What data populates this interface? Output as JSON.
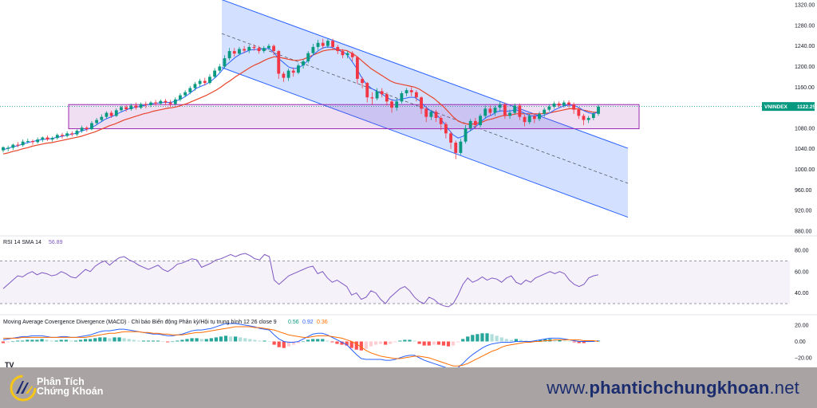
{
  "chart_data": {
    "type": "candlestick",
    "price_axis": {
      "ticks": [
        "1320.00",
        "1280.00",
        "1240.00",
        "1200.00",
        "1160.00",
        "1120.00",
        "1080.00",
        "1040.00",
        "1000.00",
        "960.00",
        "920.00",
        "880.00"
      ],
      "ylim": [
        860,
        1330
      ]
    },
    "current_price": {
      "symbol": "VNINDEX",
      "value": "1122.25",
      "color": "#089981"
    },
    "colors": {
      "up": "#089981",
      "down": "#f23645",
      "ma_fast": "#2962ff",
      "ma_slow": "#e8442a",
      "channel_fill": "#2962ff",
      "channel_line": "#2962ff",
      "zone_fill": "#9c27b0"
    },
    "candles": [
      [
        1037,
        1043,
        1033,
        1045
      ],
      [
        1040,
        1042,
        1035,
        1046
      ],
      [
        1042,
        1048,
        1038,
        1050
      ],
      [
        1048,
        1047,
        1043,
        1053
      ],
      [
        1047,
        1054,
        1044,
        1058
      ],
      [
        1054,
        1055,
        1050,
        1060
      ],
      [
        1055,
        1053,
        1048,
        1058
      ],
      [
        1053,
        1058,
        1050,
        1062
      ],
      [
        1058,
        1062,
        1053,
        1064
      ],
      [
        1062,
        1058,
        1055,
        1066
      ],
      [
        1058,
        1061,
        1054,
        1064
      ],
      [
        1061,
        1067,
        1058,
        1070
      ],
      [
        1067,
        1065,
        1060,
        1071
      ],
      [
        1065,
        1070,
        1062,
        1074
      ],
      [
        1070,
        1068,
        1064,
        1074
      ],
      [
        1068,
        1075,
        1065,
        1078
      ],
      [
        1075,
        1081,
        1071,
        1085
      ],
      [
        1081,
        1078,
        1073,
        1084
      ],
      [
        1078,
        1090,
        1076,
        1094
      ],
      [
        1090,
        1096,
        1086,
        1100
      ],
      [
        1096,
        1102,
        1092,
        1107
      ],
      [
        1102,
        1110,
        1099,
        1113
      ],
      [
        1110,
        1104,
        1100,
        1114
      ],
      [
        1104,
        1115,
        1102,
        1119
      ],
      [
        1115,
        1121,
        1112,
        1124
      ],
      [
        1121,
        1117,
        1112,
        1125
      ],
      [
        1117,
        1124,
        1114,
        1128
      ],
      [
        1124,
        1120,
        1116,
        1130
      ],
      [
        1120,
        1127,
        1117,
        1130
      ],
      [
        1127,
        1125,
        1119,
        1132
      ],
      [
        1125,
        1130,
        1121,
        1133
      ],
      [
        1130,
        1128,
        1124,
        1135
      ],
      [
        1128,
        1133,
        1125,
        1136
      ],
      [
        1133,
        1130,
        1125,
        1137
      ],
      [
        1130,
        1127,
        1122,
        1135
      ],
      [
        1127,
        1136,
        1124,
        1140
      ],
      [
        1136,
        1144,
        1132,
        1148
      ],
      [
        1144,
        1150,
        1140,
        1154
      ],
      [
        1150,
        1158,
        1146,
        1162
      ],
      [
        1158,
        1166,
        1153,
        1170
      ],
      [
        1166,
        1172,
        1161,
        1176
      ],
      [
        1172,
        1168,
        1163,
        1178
      ],
      [
        1168,
        1180,
        1165,
        1185
      ],
      [
        1180,
        1192,
        1177,
        1197
      ],
      [
        1192,
        1200,
        1188,
        1205
      ],
      [
        1200,
        1216,
        1196,
        1222
      ],
      [
        1216,
        1230,
        1212,
        1236
      ],
      [
        1230,
        1225,
        1219,
        1236
      ],
      [
        1225,
        1234,
        1222,
        1238
      ],
      [
        1234,
        1231,
        1226,
        1240
      ],
      [
        1231,
        1238,
        1226,
        1242
      ],
      [
        1238,
        1236,
        1231,
        1243
      ],
      [
        1236,
        1230,
        1225,
        1240
      ],
      [
        1230,
        1236,
        1226,
        1240
      ],
      [
        1236,
        1240,
        1232,
        1244
      ],
      [
        1240,
        1230,
        1222,
        1243
      ],
      [
        1230,
        1186,
        1176,
        1232
      ],
      [
        1186,
        1178,
        1170,
        1190
      ],
      [
        1178,
        1192,
        1172,
        1196
      ],
      [
        1192,
        1188,
        1180,
        1198
      ],
      [
        1188,
        1202,
        1185,
        1206
      ],
      [
        1202,
        1210,
        1196,
        1214
      ],
      [
        1210,
        1226,
        1206,
        1230
      ],
      [
        1226,
        1238,
        1222,
        1244
      ],
      [
        1238,
        1246,
        1232,
        1252
      ],
      [
        1246,
        1240,
        1234,
        1254
      ],
      [
        1240,
        1250,
        1236,
        1254
      ],
      [
        1250,
        1238,
        1232,
        1254
      ],
      [
        1238,
        1230,
        1224,
        1242
      ],
      [
        1230,
        1222,
        1216,
        1234
      ],
      [
        1222,
        1226,
        1216,
        1230
      ],
      [
        1226,
        1218,
        1210,
        1230
      ],
      [
        1218,
        1176,
        1166,
        1220
      ],
      [
        1176,
        1168,
        1158,
        1180
      ],
      [
        1168,
        1140,
        1130,
        1170
      ],
      [
        1140,
        1138,
        1126,
        1150
      ],
      [
        1138,
        1152,
        1134,
        1158
      ],
      [
        1152,
        1146,
        1140,
        1158
      ],
      [
        1146,
        1132,
        1124,
        1150
      ],
      [
        1132,
        1120,
        1110,
        1136
      ],
      [
        1120,
        1132,
        1114,
        1138
      ],
      [
        1132,
        1148,
        1128,
        1152
      ],
      [
        1148,
        1154,
        1142,
        1158
      ],
      [
        1154,
        1150,
        1142,
        1160
      ],
      [
        1150,
        1140,
        1132,
        1154
      ],
      [
        1140,
        1118,
        1108,
        1142
      ],
      [
        1118,
        1102,
        1092,
        1122
      ],
      [
        1102,
        1112,
        1096,
        1116
      ],
      [
        1112,
        1100,
        1092,
        1116
      ],
      [
        1100,
        1088,
        1076,
        1104
      ],
      [
        1088,
        1070,
        1060,
        1092
      ],
      [
        1070,
        1052,
        1040,
        1074
      ],
      [
        1052,
        1032,
        1020,
        1056
      ],
      [
        1032,
        1054,
        1028,
        1060
      ],
      [
        1054,
        1080,
        1050,
        1086
      ],
      [
        1080,
        1094,
        1074,
        1098
      ],
      [
        1094,
        1086,
        1080,
        1100
      ],
      [
        1086,
        1104,
        1082,
        1108
      ],
      [
        1104,
        1118,
        1100,
        1124
      ],
      [
        1118,
        1110,
        1104,
        1124
      ],
      [
        1110,
        1120,
        1104,
        1124
      ],
      [
        1120,
        1126,
        1112,
        1132
      ],
      [
        1126,
        1104,
        1098,
        1130
      ],
      [
        1104,
        1110,
        1098,
        1116
      ],
      [
        1110,
        1124,
        1106,
        1128
      ],
      [
        1124,
        1102,
        1096,
        1128
      ],
      [
        1102,
        1092,
        1084,
        1106
      ],
      [
        1092,
        1104,
        1088,
        1108
      ],
      [
        1104,
        1098,
        1090,
        1108
      ],
      [
        1098,
        1108,
        1094,
        1112
      ],
      [
        1108,
        1116,
        1102,
        1120
      ],
      [
        1116,
        1122,
        1112,
        1126
      ],
      [
        1122,
        1128,
        1118,
        1132
      ],
      [
        1128,
        1124,
        1120,
        1132
      ],
      [
        1124,
        1130,
        1120,
        1134
      ],
      [
        1130,
        1126,
        1120,
        1134
      ],
      [
        1126,
        1116,
        1108,
        1130
      ],
      [
        1116,
        1104,
        1098,
        1120
      ],
      [
        1104,
        1096,
        1086,
        1108
      ],
      [
        1096,
        1100,
        1090,
        1104
      ],
      [
        1100,
        1108,
        1096,
        1112
      ],
      [
        1108,
        1122,
        1104,
        1126
      ]
    ],
    "ma_fast": [
      1038,
      1041,
      1044,
      1046,
      1049,
      1052,
      1054,
      1056,
      1058,
      1059,
      1060,
      1062,
      1064,
      1066,
      1068,
      1070,
      1074,
      1077,
      1080,
      1085,
      1091,
      1097,
      1101,
      1105,
      1110,
      1114,
      1118,
      1120,
      1122,
      1124,
      1126,
      1128,
      1129,
      1130,
      1130,
      1131,
      1134,
      1138,
      1144,
      1151,
      1158,
      1162,
      1166,
      1172,
      1180,
      1190,
      1202,
      1210,
      1218,
      1224,
      1228,
      1232,
      1233,
      1233,
      1235,
      1235,
      1226,
      1215,
      1207,
      1199,
      1196,
      1197,
      1203,
      1212,
      1222,
      1230,
      1236,
      1238,
      1237,
      1233,
      1229,
      1224,
      1211,
      1197,
      1180,
      1166,
      1158,
      1153,
      1148,
      1142,
      1136,
      1134,
      1136,
      1138,
      1140,
      1140,
      1134,
      1124,
      1116,
      1110,
      1102,
      1091,
      1078,
      1067,
      1061,
      1064,
      1072,
      1078,
      1086,
      1095,
      1102,
      1106,
      1112,
      1114,
      1113,
      1114,
      1116,
      1112,
      1108,
      1104,
      1104,
      1104,
      1106,
      1110,
      1116,
      1120,
      1124,
      1125,
      1124,
      1120,
      1114,
      1110,
      1108,
      1112
    ],
    "ma_slow": [
      1030,
      1032,
      1035,
      1037,
      1040,
      1042,
      1045,
      1047,
      1049,
      1051,
      1052,
      1054,
      1056,
      1058,
      1060,
      1062,
      1064,
      1067,
      1070,
      1073,
      1077,
      1081,
      1085,
      1088,
      1092,
      1096,
      1099,
      1102,
      1105,
      1108,
      1110,
      1113,
      1115,
      1117,
      1119,
      1120,
      1122,
      1125,
      1128,
      1132,
      1136,
      1140,
      1144,
      1149,
      1154,
      1160,
      1167,
      1173,
      1180,
      1186,
      1192,
      1198,
      1203,
      1207,
      1212,
      1216,
      1219,
      1218,
      1216,
      1214,
      1212,
      1212,
      1214,
      1218,
      1222,
      1226,
      1230,
      1232,
      1233,
      1233,
      1232,
      1231,
      1226,
      1220,
      1212,
      1204,
      1196,
      1190,
      1184,
      1178,
      1172,
      1168,
      1166,
      1164,
      1162,
      1160,
      1156,
      1150,
      1144,
      1138,
      1130,
      1122,
      1112,
      1102,
      1094,
      1090,
      1088,
      1088,
      1090,
      1092,
      1096,
      1098,
      1101,
      1104,
      1105,
      1106,
      1108,
      1108,
      1108,
      1108,
      1108,
      1108,
      1109,
      1110,
      1112,
      1114,
      1116,
      1118,
      1118,
      1117,
      1115,
      1113,
      1111,
      1111
    ],
    "channel": {
      "upper_top": 1330,
      "upper_bottom": 1041,
      "lower_top": 1198,
      "lower_bottom": 907,
      "mid_bottom": 973
    },
    "zone": {
      "top": 1126,
      "bottom": 1079
    },
    "rsi": {
      "label": "RSI 14 SMA 14",
      "value": "56.89",
      "ticks": [
        "80.00",
        "60.00",
        "40.00"
      ],
      "upper": 70,
      "lower": 30,
      "values": [
        44,
        48,
        52,
        56,
        55,
        58,
        60,
        57,
        59,
        58,
        56,
        57,
        60,
        58,
        55,
        54,
        58,
        62,
        60,
        65,
        68,
        70,
        66,
        70,
        73,
        74,
        71,
        69,
        66,
        64,
        62,
        64,
        66,
        62,
        60,
        63,
        67,
        68,
        70,
        72,
        71,
        64,
        66,
        68,
        71,
        72,
        74,
        76,
        74,
        76,
        77,
        75,
        72,
        71,
        76,
        74,
        52,
        48,
        52,
        56,
        58,
        60,
        62,
        64,
        65,
        58,
        60,
        54,
        50,
        52,
        49,
        46,
        38,
        40,
        34,
        36,
        42,
        40,
        34,
        30,
        36,
        40,
        44,
        46,
        42,
        36,
        32,
        30,
        36,
        34,
        30,
        28,
        27,
        30,
        38,
        48,
        54,
        50,
        52,
        55,
        52,
        54,
        53,
        50,
        54,
        56,
        50,
        48,
        52,
        50,
        54,
        56,
        58,
        60,
        58,
        60,
        58,
        52,
        48,
        46,
        48,
        54,
        56,
        57
      ]
    },
    "macd": {
      "label": "Moving Average Covergence Divergence (MACD) · Chỉ báo Biến động Phân kỳ/Hội tụ trung bình 12 26 close 9",
      "v1": "0.56",
      "v2": "0.92",
      "v3": "0.36",
      "ticks": [
        "20.00",
        "0.00",
        "−20.00"
      ],
      "hist": [
        -2,
        -1,
        0,
        1,
        1,
        2,
        2,
        2,
        3,
        2,
        1,
        1,
        2,
        2,
        1,
        1,
        2,
        3,
        3,
        4,
        5,
        5,
        4,
        5,
        5,
        4,
        3,
        2,
        1,
        1,
        1,
        1,
        1,
        0,
        -1,
        0,
        1,
        2,
        3,
        4,
        4,
        3,
        3,
        4,
        5,
        6,
        7,
        6,
        6,
        5,
        4,
        3,
        2,
        1,
        1,
        0,
        -4,
        -7,
        -8,
        -6,
        -4,
        -2,
        0,
        2,
        3,
        3,
        3,
        1,
        -1,
        -3,
        -4,
        -5,
        -8,
        -10,
        -11,
        -9,
        -6,
        -4,
        -3,
        -4,
        -3,
        -1,
        1,
        2,
        2,
        1,
        -3,
        -5,
        -5,
        -4,
        -4,
        -5,
        -6,
        -5,
        -1,
        3,
        6,
        8,
        9,
        10,
        10,
        9,
        7,
        5,
        3,
        2,
        3,
        2,
        1,
        0,
        1,
        2,
        3,
        3,
        2,
        2,
        1,
        0,
        -1,
        -2,
        -2,
        -1,
        1,
        1
      ],
      "macd_line": [
        2,
        3,
        4,
        5,
        6,
        6,
        7,
        7,
        7,
        6,
        5,
        5,
        6,
        6,
        5,
        5,
        6,
        7,
        8,
        10,
        12,
        13,
        13,
        14,
        15,
        15,
        14,
        13,
        12,
        11,
        10,
        9,
        9,
        8,
        7,
        7,
        8,
        9,
        11,
        13,
        14,
        14,
        15,
        16,
        18,
        20,
        22,
        22,
        22,
        21,
        20,
        19,
        18,
        16,
        15,
        14,
        8,
        3,
        0,
        -1,
        -1,
        0,
        3,
        6,
        9,
        10,
        10,
        8,
        5,
        2,
        -1,
        -4,
        -10,
        -16,
        -21,
        -22,
        -22,
        -22,
        -22,
        -23,
        -23,
        -22,
        -20,
        -18,
        -17,
        -17,
        -20,
        -23,
        -25,
        -27,
        -29,
        -31,
        -33,
        -34,
        -32,
        -27,
        -21,
        -16,
        -12,
        -8,
        -5,
        -3,
        -2,
        -1,
        -1,
        -1,
        0,
        0,
        0,
        0,
        1,
        2,
        3,
        4,
        4,
        4,
        3,
        2,
        1,
        0,
        0,
        0,
        0,
        1
      ],
      "signal_line": [
        4,
        4,
        4,
        4,
        5,
        5,
        5,
        5,
        5,
        5,
        5,
        5,
        5,
        5,
        5,
        5,
        5,
        5,
        6,
        7,
        8,
        9,
        10,
        10,
        11,
        12,
        12,
        12,
        12,
        11,
        11,
        10,
        10,
        9,
        9,
        8,
        8,
        8,
        9,
        10,
        11,
        11,
        12,
        13,
        14,
        15,
        16,
        17,
        18,
        18,
        18,
        18,
        17,
        17,
        16,
        15,
        14,
        12,
        10,
        8,
        7,
        6,
        5,
        5,
        6,
        7,
        7,
        7,
        6,
        5,
        4,
        2,
        0,
        -3,
        -7,
        -11,
        -14,
        -16,
        -18,
        -19,
        -20,
        -21,
        -21,
        -20,
        -19,
        -18,
        -18,
        -19,
        -20,
        -22,
        -24,
        -26,
        -28,
        -30,
        -30,
        -29,
        -27,
        -24,
        -21,
        -18,
        -15,
        -12,
        -10,
        -7,
        -5,
        -4,
        -3,
        -2,
        -1,
        -1,
        0,
        0,
        1,
        1,
        2,
        2,
        2,
        2,
        2,
        2,
        1,
        1,
        1,
        0
      ]
    }
  },
  "footer": {
    "logo_line1": "Phân Tích",
    "logo_line2": "Chứng Khoán",
    "url_prefix": "www.",
    "url_brand": "phantichchungkhoan",
    "url_suffix": ".net",
    "tv_mark": "TV"
  }
}
